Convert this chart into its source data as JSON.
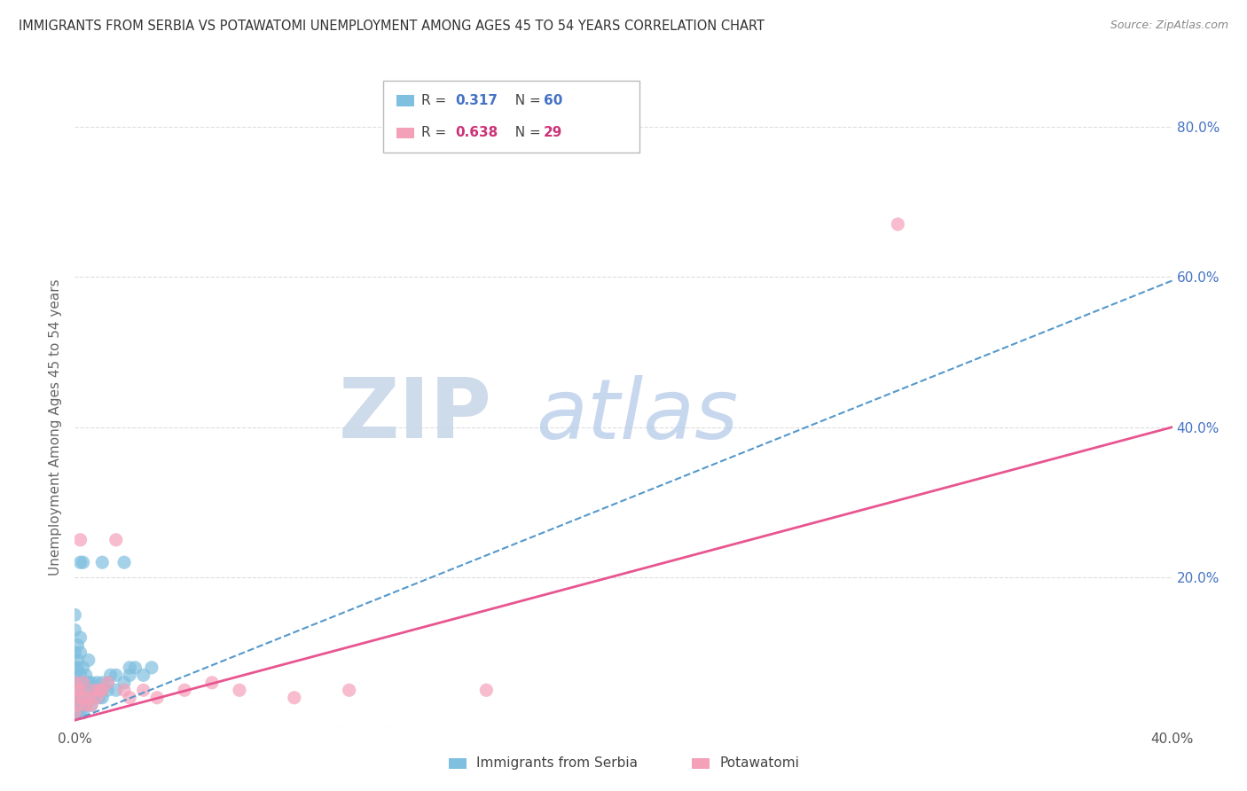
{
  "title": "IMMIGRANTS FROM SERBIA VS POTAWATOMI UNEMPLOYMENT AMONG AGES 45 TO 54 YEARS CORRELATION CHART",
  "source": "Source: ZipAtlas.com",
  "ylabel": "Unemployment Among Ages 45 to 54 years",
  "xlim": [
    0.0,
    0.4
  ],
  "ylim": [
    0.0,
    0.8
  ],
  "series": [
    {
      "name": "Immigrants from Serbia",
      "R": "0.317",
      "N": "60",
      "color": "#7fbfdf",
      "line_color": "#5599cc",
      "line_style": "--",
      "points_x": [
        0.0,
        0.0,
        0.0,
        0.0,
        0.0,
        0.0,
        0.0,
        0.0,
        0.001,
        0.001,
        0.001,
        0.001,
        0.001,
        0.001,
        0.002,
        0.002,
        0.002,
        0.002,
        0.002,
        0.003,
        0.003,
        0.003,
        0.004,
        0.004,
        0.005,
        0.005,
        0.006,
        0.007,
        0.008,
        0.01,
        0.01,
        0.012,
        0.013,
        0.015,
        0.018,
        0.02,
        0.022,
        0.025,
        0.028,
        0.01,
        0.018,
        0.002,
        0.003,
        0.0,
        0.0,
        0.001,
        0.001,
        0.002,
        0.002,
        0.003,
        0.004,
        0.005,
        0.006,
        0.007,
        0.008,
        0.009,
        0.01,
        0.012,
        0.015,
        0.02
      ],
      "points_y": [
        0.02,
        0.03,
        0.04,
        0.05,
        0.06,
        0.07,
        0.08,
        0.1,
        0.02,
        0.03,
        0.04,
        0.05,
        0.06,
        0.08,
        0.02,
        0.03,
        0.04,
        0.05,
        0.07,
        0.02,
        0.04,
        0.06,
        0.03,
        0.05,
        0.04,
        0.06,
        0.03,
        0.04,
        0.05,
        0.04,
        0.06,
        0.05,
        0.07,
        0.05,
        0.06,
        0.07,
        0.08,
        0.07,
        0.08,
        0.22,
        0.22,
        0.22,
        0.22,
        0.13,
        0.15,
        0.09,
        0.11,
        0.1,
        0.12,
        0.08,
        0.07,
        0.09,
        0.06,
        0.05,
        0.06,
        0.04,
        0.05,
        0.06,
        0.07,
        0.08
      ],
      "trend_x": [
        0.0,
        0.4
      ],
      "trend_y": [
        0.01,
        0.595
      ]
    },
    {
      "name": "Potawatomi",
      "R": "0.638",
      "N": "29",
      "color": "#f4a0b8",
      "line_color": "#e85590",
      "line_style": "-",
      "points_x": [
        0.0,
        0.0,
        0.0,
        0.001,
        0.001,
        0.002,
        0.002,
        0.003,
        0.003,
        0.004,
        0.005,
        0.006,
        0.007,
        0.008,
        0.009,
        0.01,
        0.012,
        0.015,
        0.018,
        0.02,
        0.025,
        0.03,
        0.04,
        0.05,
        0.06,
        0.08,
        0.1,
        0.15,
        0.3
      ],
      "points_y": [
        0.02,
        0.04,
        0.06,
        0.03,
        0.05,
        0.25,
        0.05,
        0.04,
        0.06,
        0.03,
        0.04,
        0.03,
        0.05,
        0.04,
        0.05,
        0.05,
        0.06,
        0.25,
        0.05,
        0.04,
        0.05,
        0.04,
        0.05,
        0.06,
        0.05,
        0.04,
        0.05,
        0.05,
        0.67
      ],
      "trend_x": [
        0.0,
        0.4
      ],
      "trend_y": [
        0.01,
        0.4
      ]
    }
  ],
  "watermark_ZIP": "ZIP",
  "watermark_atlas": "atlas",
  "background_color": "#ffffff",
  "grid_color": "#dddddd",
  "legend_R_color_blue": "#4472c4",
  "legend_R_color_pink": "#cc3377",
  "legend_marker_blue": "#7fbfdf",
  "legend_marker_pink": "#f4a0b8"
}
